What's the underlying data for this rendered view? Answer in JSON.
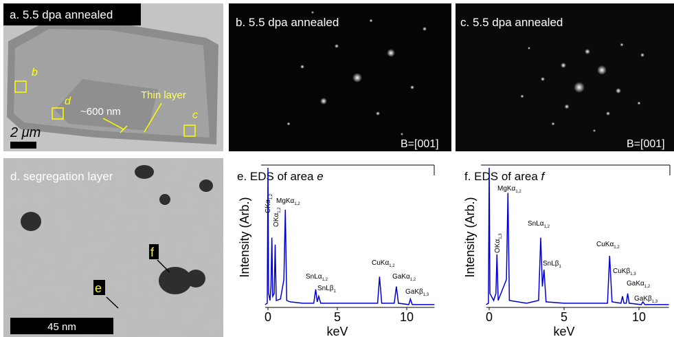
{
  "panels": {
    "a": {
      "label": "a. 5.5 dpa annealed",
      "box_b": "b",
      "box_d": "d",
      "box_c": "c",
      "width_note": "~600 nm",
      "layer_note": "Thin layer",
      "scale": "2 μm"
    },
    "b": {
      "label": "b. 5.5 dpa annealed",
      "zone": "B=[001]"
    },
    "c": {
      "label": "c. 5.5 dpa annealed",
      "zone": "B=[001]"
    },
    "d": {
      "label": "d. segregation layer",
      "mark_f": "f",
      "mark_e": "e",
      "scale": "45 nm"
    }
  },
  "chart_data": [
    {
      "type": "line",
      "title": "e. EDS of area ",
      "title_italic": "e",
      "xlabel": "keV",
      "ylabel": "Intensity (Arb.)",
      "xlim": [
        -0.2,
        12
      ],
      "ylim": [
        0,
        1
      ],
      "xticks": [
        0,
        5,
        10
      ],
      "series": [
        {
          "color": "#0000cc",
          "x": [
            -0.2,
            -0.05,
            0,
            0.05,
            0.15,
            0.22,
            0.28,
            0.34,
            0.45,
            0.52,
            0.6,
            0.9,
            1.15,
            1.25,
            1.35,
            1.6,
            2.5,
            3.3,
            3.44,
            3.55,
            3.66,
            3.8,
            5,
            7.9,
            8.04,
            8.2,
            9.1,
            9.25,
            9.4,
            10.15,
            10.26,
            10.4,
            12
          ],
          "values": [
            0.02,
            0.03,
            1,
            0.1,
            0.05,
            0.15,
            0.5,
            0.08,
            0.1,
            0.45,
            0.05,
            0.06,
            0.2,
            0.7,
            0.05,
            0.04,
            0.03,
            0.03,
            0.13,
            0.04,
            0.08,
            0.03,
            0.03,
            0.03,
            0.22,
            0.03,
            0.03,
            0.15,
            0.03,
            0.02,
            0.06,
            0.02,
            0.02
          ]
        }
      ],
      "annotations": [
        {
          "text": "CKα",
          "sub": "1,2"
        },
        {
          "text": "OKα",
          "sub": "1,2"
        },
        {
          "text": "MgKα",
          "sub": "1,2"
        },
        {
          "text": "SnLα",
          "sub": "1,2"
        },
        {
          "text": "SnLβ",
          "sub": "1"
        },
        {
          "text": "CuKα",
          "sub": "1,2"
        },
        {
          "text": "GaKα",
          "sub": "1,2"
        },
        {
          "text": "GaKβ",
          "sub": "1,3"
        }
      ]
    },
    {
      "type": "line",
      "title": "f. EDS of area ",
      "title_italic": "f",
      "xlabel": "keV",
      "ylabel": "Intensity (Arb.)",
      "xlim": [
        -0.2,
        12
      ],
      "ylim": [
        0,
        1
      ],
      "xticks": [
        0,
        5,
        10
      ],
      "series": [
        {
          "color": "#0000cc",
          "x": [
            -0.2,
            -0.05,
            0,
            0.05,
            0.3,
            0.45,
            0.52,
            0.6,
            1.15,
            1.25,
            1.35,
            2.5,
            3.3,
            3.44,
            3.55,
            3.66,
            3.8,
            5,
            7.9,
            8.04,
            8.2,
            8.8,
            8.9,
            9.0,
            9.15,
            9.25,
            9.35,
            10.15,
            10.26,
            10.4,
            12
          ],
          "values": [
            0.02,
            0.03,
            1,
            0.1,
            0.05,
            0.1,
            0.38,
            0.05,
            0.2,
            0.82,
            0.05,
            0.03,
            0.05,
            0.5,
            0.15,
            0.27,
            0.04,
            0.03,
            0.03,
            0.37,
            0.04,
            0.03,
            0.08,
            0.03,
            0.03,
            0.1,
            0.03,
            0.02,
            0.04,
            0.02,
            0.02
          ]
        }
      ],
      "annotations": [
        {
          "text": "MgKα",
          "sub": "1,2"
        },
        {
          "text": "OKα",
          "sub": "1,3"
        },
        {
          "text": "SnLα",
          "sub": "1,2"
        },
        {
          "text": "SnLβ",
          "sub": "1"
        },
        {
          "text": "CuKα",
          "sub": "1,2"
        },
        {
          "text": "CuKβ",
          "sub": "1,3"
        },
        {
          "text": "GaKα",
          "sub": "1,2"
        },
        {
          "text": "GaKβ",
          "sub": "1,3"
        }
      ]
    }
  ]
}
